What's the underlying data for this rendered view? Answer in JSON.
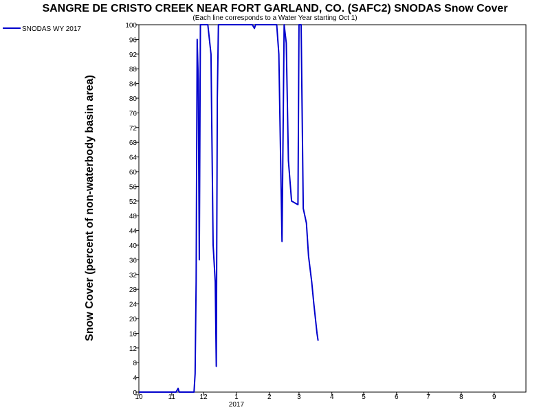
{
  "chart_data": {
    "type": "line",
    "title": "SANGRE DE CRISTO CREEK NEAR FORT GARLAND, CO. (SAFC2) SNODAS Snow Cover",
    "subtitle": "(Each line corresponds to a Water Year starting Oct 1)",
    "ylabel": "Snow Cover (percent of non-waterbody basin area)",
    "xlabel": "",
    "year_label": "2017",
    "ylim": [
      0,
      100
    ],
    "xlim": [
      "2016-10-01",
      "2017-09-30"
    ],
    "y_ticks": [
      0,
      4,
      8,
      12,
      16,
      20,
      24,
      28,
      32,
      36,
      40,
      44,
      48,
      52,
      56,
      60,
      64,
      68,
      72,
      76,
      80,
      84,
      88,
      92,
      96,
      100
    ],
    "x_ticks": [
      {
        "date": "2016-10-01",
        "label": "10"
      },
      {
        "date": "2016-11-01",
        "label": "11"
      },
      {
        "date": "2016-12-01",
        "label": "12"
      },
      {
        "date": "2017-01-01",
        "label": "1"
      },
      {
        "date": "2017-02-01",
        "label": "2"
      },
      {
        "date": "2017-03-01",
        "label": "3"
      },
      {
        "date": "2017-04-01",
        "label": "4"
      },
      {
        "date": "2017-05-01",
        "label": "5"
      },
      {
        "date": "2017-06-01",
        "label": "6"
      },
      {
        "date": "2017-07-01",
        "label": "7"
      },
      {
        "date": "2017-08-01",
        "label": "8"
      },
      {
        "date": "2017-09-01",
        "label": "9"
      }
    ],
    "grid": false,
    "legend_position": "top-left",
    "series": [
      {
        "name": "SNODAS WY 2017",
        "color": "#0000cc",
        "points": [
          [
            "2016-10-01",
            0
          ],
          [
            "2016-11-05",
            0
          ],
          [
            "2016-11-07",
            1
          ],
          [
            "2016-11-08",
            0
          ],
          [
            "2016-11-22",
            0
          ],
          [
            "2016-11-23",
            5
          ],
          [
            "2016-11-24",
            30
          ],
          [
            "2016-11-25",
            96
          ],
          [
            "2016-11-26",
            85
          ],
          [
            "2016-11-27",
            36
          ],
          [
            "2016-11-28",
            100
          ],
          [
            "2016-11-29",
            100
          ],
          [
            "2016-12-01",
            100
          ],
          [
            "2016-12-05",
            100
          ],
          [
            "2016-12-08",
            92
          ],
          [
            "2016-12-10",
            40
          ],
          [
            "2016-12-12",
            30
          ],
          [
            "2016-12-13",
            7
          ],
          [
            "2016-12-14",
            80
          ],
          [
            "2016-12-15",
            100
          ],
          [
            "2016-12-20",
            100
          ],
          [
            "2017-01-12",
            100
          ],
          [
            "2017-01-16",
            100
          ],
          [
            "2017-01-18",
            99
          ],
          [
            "2017-01-19",
            100
          ],
          [
            "2017-01-25",
            100
          ],
          [
            "2017-02-08",
            100
          ],
          [
            "2017-02-10",
            92
          ],
          [
            "2017-02-13",
            41
          ],
          [
            "2017-02-15",
            100
          ],
          [
            "2017-02-17",
            95
          ],
          [
            "2017-02-19",
            63
          ],
          [
            "2017-02-22",
            52
          ],
          [
            "2017-02-28",
            51
          ],
          [
            "2017-03-01",
            100
          ],
          [
            "2017-03-03",
            100
          ],
          [
            "2017-03-05",
            50
          ],
          [
            "2017-03-08",
            46
          ],
          [
            "2017-03-10",
            37
          ],
          [
            "2017-03-13",
            30
          ],
          [
            "2017-03-15",
            24
          ],
          [
            "2017-03-18",
            16
          ],
          [
            "2017-03-19",
            14
          ]
        ]
      }
    ]
  }
}
